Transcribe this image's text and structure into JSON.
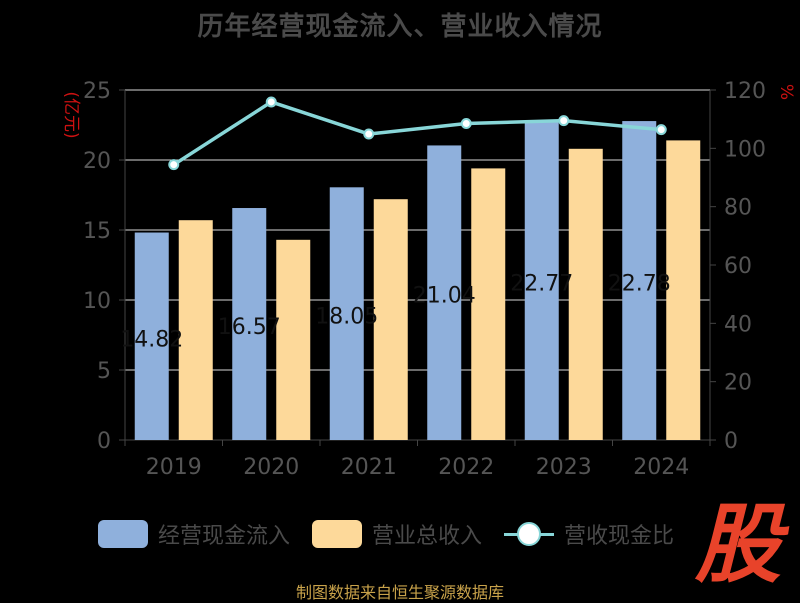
{
  "chart_data": {
    "type": "bar",
    "title": "历年经营现金流入、营业收入情况",
    "categories": [
      "2019",
      "2020",
      "2021",
      "2022",
      "2023",
      "2024"
    ],
    "series": [
      {
        "name": "经营现金流入",
        "axis": "left",
        "values": [
          14.82,
          16.57,
          18.05,
          21.04,
          22.77,
          22.78
        ],
        "data_labels": [
          "14.82",
          "16.57",
          "18.05",
          "21.04",
          "22.77",
          "22.78"
        ]
      },
      {
        "name": "营业总收入",
        "axis": "left",
        "values": [
          15.7,
          14.3,
          17.2,
          19.4,
          20.8,
          21.4
        ]
      },
      {
        "name": "营收现金比",
        "axis": "right",
        "type": "line",
        "values": [
          94.4,
          115.9,
          104.9,
          108.5,
          109.5,
          106.4
        ]
      }
    ],
    "y_left": {
      "label": "(亿元)",
      "min": 0,
      "max": 25,
      "ticks": [
        "0",
        "5",
        "10",
        "15",
        "20",
        "25"
      ]
    },
    "y_right": {
      "label": "%",
      "min": 0,
      "max": 120,
      "ticks": [
        "0",
        "20",
        "40",
        "60",
        "80",
        "100",
        "120"
      ]
    },
    "grid": true,
    "legend_position": "bottom"
  },
  "legend": {
    "item1": "经营现金流入",
    "item2": "营业总收入",
    "item3": "营收现金比"
  },
  "watermark": "股",
  "source": "制图数据来自恒生聚源数据库",
  "colors": {
    "cash_inflow_bar": "#8fb0dc",
    "revenue_bar": "#fdd99a",
    "ratio_line": "#88d6d8",
    "axis_label_red": "#cc1111",
    "tick_text": "#555555",
    "background": "#000000"
  }
}
